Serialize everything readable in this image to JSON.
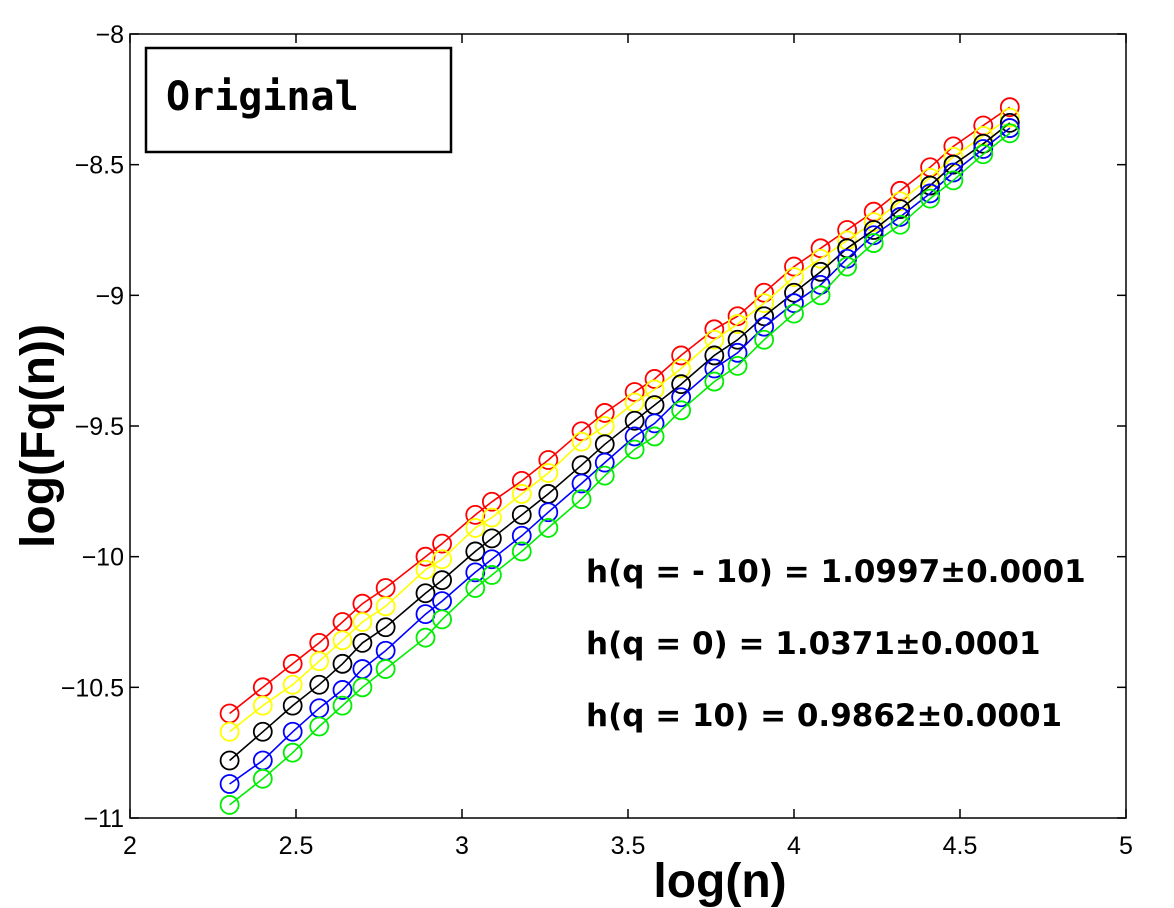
{
  "chart_data": {
    "type": "line",
    "xlabel": "log(n)",
    "ylabel": "log(Fq(n))",
    "xlim": [
      2,
      5
    ],
    "ylim": [
      -11,
      -8
    ],
    "xticks": [
      "2",
      "2.5",
      "3",
      "3.5",
      "4",
      "4.5",
      "5"
    ],
    "yticks": [
      "-8",
      "-8.5",
      "-9",
      "-9.5",
      "-10",
      "-10.5",
      "-11"
    ],
    "legend_label": "Original",
    "legend_position": "top-left",
    "grid": false,
    "marker": "open-circle",
    "x": [
      2.3,
      2.4,
      2.49,
      2.57,
      2.64,
      2.7,
      2.77,
      2.89,
      2.94,
      3.04,
      3.09,
      3.18,
      3.26,
      3.36,
      3.43,
      3.52,
      3.58,
      3.66,
      3.76,
      3.83,
      3.91,
      4.0,
      4.08,
      4.16,
      4.24,
      4.32,
      4.41,
      4.48,
      4.57,
      4.65
    ],
    "series": [
      {
        "color": "#ff0000",
        "values": [
          -10.6,
          -10.5,
          -10.41,
          -10.33,
          -10.25,
          -10.18,
          -10.12,
          -10.0,
          -9.95,
          -9.84,
          -9.79,
          -9.71,
          -9.63,
          -9.52,
          -9.45,
          -9.37,
          -9.32,
          -9.23,
          -9.13,
          -9.08,
          -8.99,
          -8.89,
          -8.82,
          -8.75,
          -8.68,
          -8.6,
          -8.51,
          -8.43,
          -8.35,
          -8.28
        ]
      },
      {
        "color": "#ffff00",
        "values": [
          -10.67,
          -10.57,
          -10.49,
          -10.4,
          -10.32,
          -10.25,
          -10.19,
          -10.05,
          -10.01,
          -9.89,
          -9.85,
          -9.76,
          -9.68,
          -9.56,
          -9.5,
          -9.41,
          -9.36,
          -9.28,
          -9.17,
          -9.11,
          -9.03,
          -8.93,
          -8.86,
          -8.79,
          -8.72,
          -8.64,
          -8.55,
          -8.47,
          -8.39,
          -8.32
        ]
      },
      {
        "color": "#000000",
        "values": [
          -10.78,
          -10.67,
          -10.57,
          -10.49,
          -10.41,
          -10.33,
          -10.27,
          -10.14,
          -10.09,
          -9.98,
          -9.93,
          -9.84,
          -9.76,
          -9.65,
          -9.57,
          -9.48,
          -9.42,
          -9.34,
          -9.23,
          -9.17,
          -9.08,
          -8.99,
          -8.91,
          -8.82,
          -8.75,
          -8.67,
          -8.58,
          -8.5,
          -8.42,
          -8.34
        ]
      },
      {
        "color": "#0000ff",
        "values": [
          -10.87,
          -10.78,
          -10.67,
          -10.58,
          -10.51,
          -10.43,
          -10.36,
          -10.22,
          -10.17,
          -10.06,
          -10.01,
          -9.92,
          -9.83,
          -9.72,
          -9.64,
          -9.54,
          -9.49,
          -9.39,
          -9.28,
          -9.22,
          -9.12,
          -9.03,
          -8.96,
          -8.86,
          -8.77,
          -8.7,
          -8.61,
          -8.53,
          -8.44,
          -8.36
        ]
      },
      {
        "color": "#00ee00",
        "values": [
          -10.95,
          -10.85,
          -10.75,
          -10.65,
          -10.57,
          -10.5,
          -10.43,
          -10.31,
          -10.24,
          -10.12,
          -10.07,
          -9.98,
          -9.89,
          -9.78,
          -9.69,
          -9.59,
          -9.54,
          -9.44,
          -9.33,
          -9.27,
          -9.17,
          -9.07,
          -9.0,
          -8.89,
          -8.8,
          -8.73,
          -8.63,
          -8.56,
          -8.46,
          -8.38
        ]
      }
    ],
    "annotations": [
      "h(q = - 10) = 1.0997±0.0001",
      "h(q = 0) = 1.0371±0.0001",
      "h(q = 10) = 0.9862±0.0001"
    ]
  }
}
